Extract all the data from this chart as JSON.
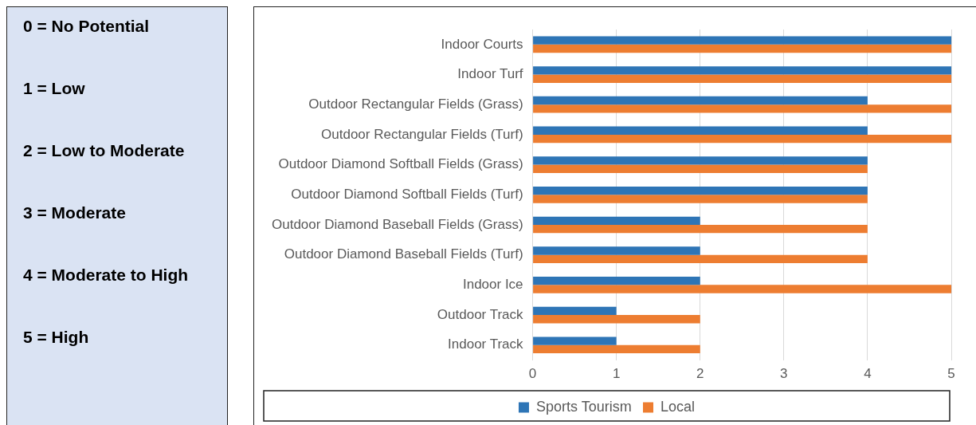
{
  "chart_data": [
    {
      "type": "other",
      "annotations": [
        "0 = No Potential",
        "1 = Low",
        "2 = Low to Moderate",
        "3 = Moderate",
        "4 = Moderate to High",
        "5 = High"
      ]
    },
    {
      "type": "bar",
      "orientation": "horizontal",
      "categories": [
        "Indoor Courts",
        "Indoor Turf",
        "Outdoor Rectangular Fields (Grass)",
        "Outdoor Rectangular Fields (Turf)",
        "Outdoor Diamond Softball Fields (Grass)",
        "Outdoor Diamond Softball Fields (Turf)",
        "Outdoor Diamond Baseball Fields (Grass)",
        "Outdoor Diamond Baseball Fields (Turf)",
        "Indoor Ice",
        "Outdoor Track",
        "Indoor Track"
      ],
      "series": [
        {
          "name": "Sports Tourism",
          "color": "#2e75b6",
          "values": [
            5,
            5,
            4,
            4,
            4,
            4,
            2,
            2,
            2,
            1,
            1
          ]
        },
        {
          "name": "Local",
          "color": "#ed7d31",
          "values": [
            5,
            5,
            5,
            5,
            4,
            4,
            4,
            4,
            5,
            2,
            2
          ]
        }
      ],
      "xlim": [
        0,
        5
      ],
      "xticks": [
        0,
        1,
        2,
        3,
        4,
        5
      ],
      "grid": "x",
      "legend": "bottom"
    }
  ]
}
